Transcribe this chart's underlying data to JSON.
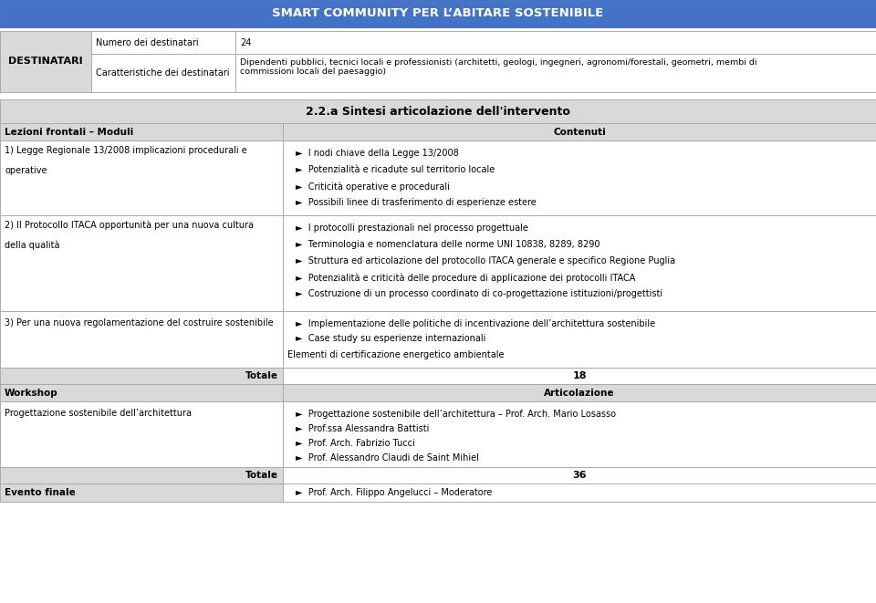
{
  "title": "SMART COMMUNITY PER L’ABITARE SOSTENIBILE",
  "title_bg": "#4472c4",
  "title_color": "#ffffff",
  "header_bg": "#d9d9d9",
  "white_bg": "#ffffff",
  "border_color": "#aaaaaa",
  "text_color": "#000000",
  "destinatari_label": "DESTINATARI",
  "dest_row1_label": "Numero dei destinatari",
  "dest_row1_value": "24",
  "dest_row2_label": "Caratteristiche dei destinatari",
  "dest_row2_value": "Dipendenti pubblici, tecnici locali e professionisti (architetti, geologi, ingegneri, agronomi/forestali, geometri, membi di\ncommissioni locali del paesaggio)",
  "section_title": "2.2.a Sintesi articolazione dell'intervento",
  "col1_header": "Lezioni frontali – Moduli",
  "col2_header": "Contenuti",
  "bullet": "►",
  "row1_left": "1) Legge Regionale 13/2008 implicazioni procedurali e\n\noperative",
  "row1_bullets": [
    "I nodi chiave della Legge 13/2008",
    "Potenzialità e ricadute sul territorio locale",
    "Criticità operative e procedurali",
    "Possibili linee di trasferimento di esperienze estere"
  ],
  "row1_plain": "",
  "row2_left": "2) Il Protocollo ITACA opportunità per una nuova cultura\n\ndella qualità",
  "row2_bullets": [
    "I protocolli prestazionali nel processo progettuale",
    "Terminologia e nomenclatura delle norme UNI 10838, 8289, 8290",
    "Struttura ed articolazione del protocollo ITACA generale e specifico Regione Puglia",
    "Potenzialità e criticità delle procedure di applicazione dei protocolli ITACA",
    "Costruzione di un processo coordinato di co-progettazione istituzioni/progettisti"
  ],
  "row2_plain": "",
  "row3_left": "3) Per una nuova regolamentazione del costruire sostenibile",
  "row3_bullets": [
    "Implementazione delle politiche di incentivazione dell’architettura sostenibile",
    "Case study su esperienze internazionali"
  ],
  "row3_plain": "Elementi di certificazione energetico ambientale",
  "totale1_label": "Totale",
  "totale1_value": "18",
  "workshop_label": "Workshop",
  "artic_label": "Articolazione",
  "workshop_left": "Progettazione sostenibile dell’architettura",
  "workshop_bullets": [
    "Progettazione sostenibile dell’architettura – Prof. Arch. Mario Losasso",
    "Prof.ssa Alessandra Battisti",
    "Prof. Arch. Fabrizio Tucci",
    "Prof. Alessandro Claudi de Saint Mihiel"
  ],
  "totale2_label": "Totale",
  "totale2_value": "36",
  "evento_label": "Evento finale",
  "evento_bullet": "Prof. Arch. Filippo Angelucci – Moderatore"
}
